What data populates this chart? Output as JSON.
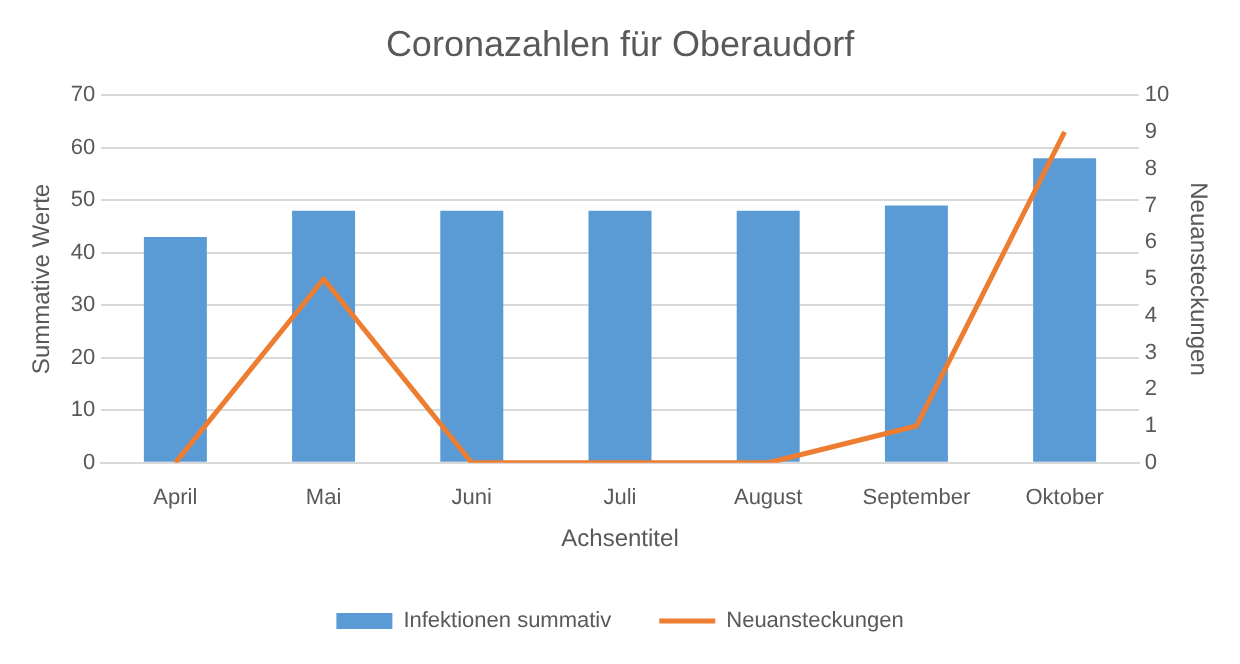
{
  "chart_data": {
    "type": "bar",
    "title": "Coronazahlen für Oberaudorf",
    "xlabel": "Achsentitel",
    "ylabel": "Summative Werte",
    "y2label": "Neuansteckungen",
    "categories": [
      "April",
      "Mai",
      "Juni",
      "Juli",
      "August",
      "September",
      "Oktober"
    ],
    "series": [
      {
        "name": "Infektionen summativ",
        "color": "#5b9bd5",
        "values": [
          43,
          48,
          48,
          48,
          48,
          49,
          58
        ]
      },
      {
        "name": "Neuansteckungen",
        "type": "line",
        "axis": "y2",
        "color": "#ed7d31",
        "values": [
          0,
          5,
          0,
          0,
          0,
          1,
          9
        ]
      }
    ],
    "ylim": [
      0,
      70
    ],
    "yticks": [
      0,
      10,
      20,
      30,
      40,
      50,
      60,
      70
    ],
    "y2lim": [
      0,
      10
    ],
    "y2ticks": [
      0,
      1,
      2,
      3,
      4,
      5,
      6,
      7,
      8,
      9,
      10
    ],
    "grid": "y",
    "legend": "bottom",
    "marker": "none",
    "line_style": "solid"
  }
}
